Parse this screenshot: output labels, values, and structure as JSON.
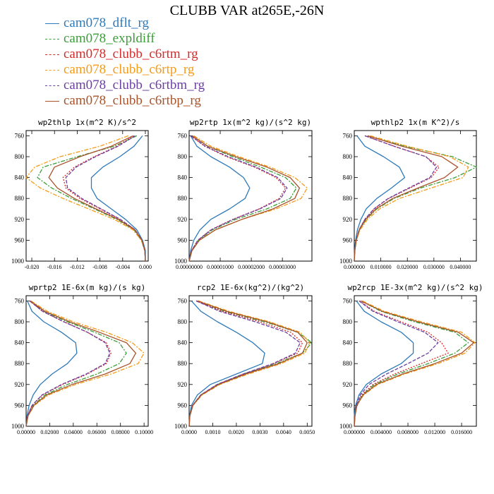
{
  "title": "CLUBB VAR at265E,-26N",
  "series": [
    {
      "name": "cam078_dflt_rg",
      "color": "#2f7ab9",
      "dash": ""
    },
    {
      "name": "cam078_expldiff",
      "color": "#3a9e38",
      "dash": "6,2,2,2"
    },
    {
      "name": "cam078_clubb_c6rtm_rg",
      "color": "#d52b2b",
      "dash": "2,2"
    },
    {
      "name": "cam078_clubb_c6rtp_rg",
      "color": "#f59b18",
      "dash": "6,2,2,2"
    },
    {
      "name": "cam078_clubb_c6rtbm_rg",
      "color": "#6b3fa0",
      "dash": "5,2"
    },
    {
      "name": "cam078_clubb_c6rtbp_rg",
      "color": "#a8532a",
      "dash": ""
    }
  ],
  "chart_data": [
    {
      "type": "line",
      "title": "wp2thlp  1x(m^2 K)/s^2",
      "xlim": [
        -0.021,
        0.0005
      ],
      "ylim": [
        1000,
        750
      ],
      "y_inverted": true,
      "xticks": [
        -0.02,
        -0.016,
        -0.012,
        -0.008,
        -0.004,
        0.0
      ],
      "xtick_labels": [
        "-0.020",
        "-0.016",
        "-0.012",
        "-0.008",
        "-0.004",
        "0.000"
      ],
      "yticks": [
        760,
        800,
        840,
        880,
        920,
        960,
        1000
      ],
      "y": [
        760,
        780,
        800,
        820,
        840,
        860,
        880,
        900,
        920,
        940,
        960,
        980,
        1000
      ],
      "series": [
        {
          "values": [
            -0.0005,
            -0.002,
            -0.0045,
            -0.0075,
            -0.0095,
            -0.0095,
            -0.0085,
            -0.006,
            -0.0035,
            -0.0015,
            -0.0005,
            0.0,
            0.0
          ]
        },
        {
          "values": [
            -0.0015,
            -0.0055,
            -0.012,
            -0.018,
            -0.019,
            -0.0165,
            -0.013,
            -0.009,
            -0.005,
            -0.002,
            -0.0007,
            -0.0001,
            0.0
          ]
        },
        {
          "values": [
            -0.002,
            -0.005,
            -0.009,
            -0.0125,
            -0.0145,
            -0.014,
            -0.0115,
            -0.008,
            -0.0045,
            -0.0018,
            -0.0006,
            -0.0001,
            0.0
          ]
        },
        {
          "values": [
            -0.003,
            -0.008,
            -0.015,
            -0.0195,
            -0.021,
            -0.0185,
            -0.0145,
            -0.01,
            -0.0055,
            -0.0022,
            -0.0007,
            -0.0001,
            0.0
          ]
        },
        {
          "values": [
            -0.0018,
            -0.0048,
            -0.0088,
            -0.0122,
            -0.014,
            -0.0137,
            -0.0112,
            -0.0078,
            -0.0044,
            -0.0018,
            -0.0006,
            -0.0001,
            0.0
          ]
        },
        {
          "values": [
            -0.0022,
            -0.006,
            -0.0115,
            -0.016,
            -0.017,
            -0.0155,
            -0.0125,
            -0.0087,
            -0.0048,
            -0.0019,
            -0.0006,
            -0.0001,
            0.0
          ]
        }
      ]
    },
    {
      "type": "line",
      "title": "wp2rtp  1x(m^2 kg)/(s^2 kg)",
      "xlim": [
        0,
        3.95e-05
      ],
      "ylim": [
        1000,
        750
      ],
      "y_inverted": true,
      "xticks": [
        0,
        1e-05,
        2e-05,
        3e-05
      ],
      "xtick_labels": [
        "0.00000000",
        "0.00001000",
        "0.00002000",
        "0.00003000"
      ],
      "yticks": [
        760,
        800,
        840,
        880,
        920,
        960,
        1000
      ],
      "y": [
        760,
        780,
        800,
        820,
        840,
        860,
        880,
        900,
        920,
        940,
        960,
        980,
        1000
      ],
      "series": [
        {
          "values": [
            5e-07,
            2.5e-06,
            7e-06,
            1.3e-05,
            1.75e-05,
            1.95e-05,
            1.8e-05,
            1.3e-05,
            7e-06,
            3.5e-06,
            1.5e-06,
            5e-07,
            0.0
          ]
        },
        {
          "values": [
            1e-06,
            6e-06,
            1.4e-05,
            2.3e-05,
            3.1e-05,
            3.45e-05,
            3.25e-05,
            2.5e-05,
            1.5e-05,
            7.5e-06,
            3e-06,
            8e-07,
            0.0
          ]
        },
        {
          "values": [
            5e-07,
            5e-06,
            1.2e-05,
            2.1e-05,
            2.8e-05,
            3.1e-05,
            2.9e-05,
            2.25e-05,
            1.4e-05,
            7e-06,
            2.8e-06,
            8e-07,
            0.0
          ]
        },
        {
          "values": [
            1.5e-06,
            7e-06,
            1.6e-05,
            2.6e-05,
            3.4e-05,
            3.8e-05,
            3.6e-05,
            2.8e-05,
            1.7e-05,
            8.5e-06,
            3.3e-06,
            9e-07,
            0.0
          ]
        },
        {
          "values": [
            5e-07,
            5.2e-06,
            1.25e-05,
            2.15e-05,
            2.85e-05,
            3.15e-05,
            2.95e-05,
            2.28e-05,
            1.42e-05,
            7.1e-06,
            2.8e-06,
            8e-07,
            0.0
          ]
        },
        {
          "values": [
            1e-06,
            6e-06,
            1.5e-05,
            2.5e-05,
            3.25e-05,
            3.55e-05,
            3.4e-05,
            2.7e-05,
            1.7e-05,
            8.5e-06,
            3.3e-06,
            9e-07,
            0.0
          ]
        }
      ]
    },
    {
      "type": "line",
      "title": "wpthlp2  1x(m K^2)/s",
      "xlim": [
        0,
        0.046
      ],
      "ylim": [
        1000,
        750
      ],
      "y_inverted": true,
      "xticks": [
        0,
        0.01,
        0.02,
        0.03,
        0.04
      ],
      "xtick_labels": [
        "0.000000",
        "0.010000",
        "0.020000",
        "0.030000",
        "0.040000"
      ],
      "yticks": [
        760,
        800,
        840,
        880,
        920,
        960,
        1000
      ],
      "y": [
        760,
        780,
        800,
        820,
        840,
        860,
        880,
        900,
        920,
        940,
        960,
        980,
        1000
      ],
      "series": [
        {
          "values": [
            0.001,
            0.004,
            0.011,
            0.017,
            0.019,
            0.014,
            0.0085,
            0.0045,
            0.0025,
            0.0012,
            0.0005,
            0.0001,
            0.0
          ]
        },
        {
          "values": [
            0.005,
            0.019,
            0.037,
            0.046,
            0.038,
            0.025,
            0.015,
            0.0085,
            0.0045,
            0.002,
            0.0008,
            0.0002,
            0.0
          ]
        },
        {
          "values": [
            0.004,
            0.015,
            0.027,
            0.032,
            0.029,
            0.021,
            0.013,
            0.0075,
            0.004,
            0.0018,
            0.0007,
            0.0002,
            0.0
          ]
        },
        {
          "values": [
            0.006,
            0.02,
            0.036,
            0.043,
            0.041,
            0.029,
            0.017,
            0.0095,
            0.005,
            0.0022,
            0.0008,
            0.0002,
            0.0
          ]
        },
        {
          "values": [
            0.004,
            0.015,
            0.027,
            0.031,
            0.0285,
            0.0205,
            0.0128,
            0.0074,
            0.004,
            0.0018,
            0.0007,
            0.0002,
            0.0
          ]
        },
        {
          "values": [
            0.005,
            0.018,
            0.033,
            0.039,
            0.034,
            0.024,
            0.0145,
            0.0082,
            0.0043,
            0.0019,
            0.0007,
            0.0002,
            0.0
          ]
        }
      ]
    },
    {
      "type": "line",
      "title": "wprtp2  1E-6x(m kg)/(s kg)",
      "xlim": [
        0,
        0.1035
      ],
      "ylim": [
        1000,
        750
      ],
      "y_inverted": true,
      "xticks": [
        0,
        0.02,
        0.04,
        0.06,
        0.08,
        0.1
      ],
      "xtick_labels": [
        "0.00000",
        "0.02000",
        "0.04000",
        "0.06000",
        "0.08000",
        "0.10000"
      ],
      "yticks": [
        760,
        800,
        840,
        880,
        920,
        960,
        1000
      ],
      "y": [
        760,
        780,
        800,
        820,
        840,
        860,
        880,
        900,
        920,
        940,
        960,
        980,
        1000
      ],
      "series": [
        {
          "values": [
            0.001,
            0.005,
            0.015,
            0.03,
            0.042,
            0.043,
            0.035,
            0.022,
            0.012,
            0.006,
            0.0025,
            0.0008,
            0.0
          ]
        },
        {
          "values": [
            0.003,
            0.015,
            0.035,
            0.058,
            0.079,
            0.085,
            0.079,
            0.06,
            0.035,
            0.016,
            0.006,
            0.0015,
            0.0
          ]
        },
        {
          "values": [
            0.003,
            0.014,
            0.032,
            0.052,
            0.068,
            0.072,
            0.068,
            0.052,
            0.031,
            0.014,
            0.005,
            0.0012,
            0.0
          ]
        },
        {
          "values": [
            0.004,
            0.018,
            0.04,
            0.068,
            0.09,
            0.1,
            0.095,
            0.072,
            0.042,
            0.019,
            0.007,
            0.0017,
            0.0
          ]
        },
        {
          "values": [
            0.003,
            0.014,
            0.032,
            0.052,
            0.067,
            0.071,
            0.067,
            0.051,
            0.03,
            0.0135,
            0.005,
            0.0012,
            0.0
          ]
        },
        {
          "values": [
            0.0035,
            0.016,
            0.037,
            0.062,
            0.085,
            0.093,
            0.088,
            0.067,
            0.039,
            0.0175,
            0.0065,
            0.0016,
            0.0
          ]
        }
      ]
    },
    {
      "type": "line",
      "title": "rcp2  1E-6x(kg^2)/(kg^2)",
      "xlim": [
        0,
        0.0052
      ],
      "ylim": [
        1000,
        750
      ],
      "y_inverted": true,
      "xticks": [
        0,
        0.001,
        0.002,
        0.003,
        0.004,
        0.005
      ],
      "xtick_labels": [
        "0.0000",
        "0.0010",
        "0.0020",
        "0.0030",
        "0.0040",
        "0.0050"
      ],
      "yticks": [
        760,
        800,
        840,
        880,
        920,
        960,
        1000
      ],
      "y": [
        760,
        780,
        800,
        820,
        840,
        860,
        880,
        900,
        920,
        940,
        960,
        980,
        1000
      ],
      "series": [
        {
          "values": [
            0.0001,
            0.0005,
            0.0012,
            0.002,
            0.0027,
            0.0032,
            0.0031,
            0.002,
            0.0009,
            0.00035,
            0.0001,
            2e-05,
            0.0
          ]
        },
        {
          "values": [
            0.0003,
            0.0015,
            0.0032,
            0.0046,
            0.0052,
            0.0048,
            0.0037,
            0.0023,
            0.0012,
            0.0005,
            0.00015,
            3e-05,
            0.0
          ]
        },
        {
          "values": [
            0.0003,
            0.0014,
            0.003,
            0.0043,
            0.0048,
            0.0046,
            0.0036,
            0.0023,
            0.0012,
            0.0005,
            0.00015,
            3e-05,
            0.0
          ]
        },
        {
          "values": [
            0.0004,
            0.0017,
            0.0034,
            0.0047,
            0.0051,
            0.0049,
            0.0039,
            0.0025,
            0.0013,
            0.00055,
            0.00016,
            3e-05,
            0.0
          ]
        },
        {
          "values": [
            0.0003,
            0.0013,
            0.0028,
            0.0041,
            0.0047,
            0.0045,
            0.00355,
            0.00228,
            0.00118,
            0.00049,
            0.00015,
            3e-05,
            0.0
          ]
        },
        {
          "values": [
            0.00035,
            0.0016,
            0.0033,
            0.0046,
            0.005,
            0.0048,
            0.0038,
            0.0024,
            0.00125,
            0.00052,
            0.00016,
            3e-05,
            0.0
          ]
        }
      ]
    },
    {
      "type": "line",
      "title": "wp2rcp  1E-3x(m^2 kg)/(s^2 kg)",
      "xlim": [
        0,
        0.0182
      ],
      "ylim": [
        1000,
        750
      ],
      "y_inverted": true,
      "xticks": [
        0,
        0.004,
        0.008,
        0.012,
        0.016
      ],
      "xtick_labels": [
        "0.000000",
        "0.004000",
        "0.008000",
        "0.012000",
        "0.016000"
      ],
      "yticks": [
        760,
        800,
        840,
        880,
        920,
        960,
        1000
      ],
      "y": [
        760,
        780,
        800,
        820,
        840,
        860,
        880,
        900,
        920,
        940,
        960,
        980,
        1000
      ],
      "series": [
        {
          "values": [
            0.0003,
            0.0015,
            0.004,
            0.007,
            0.0088,
            0.0088,
            0.007,
            0.004,
            0.0018,
            0.0007,
            0.0002,
            0.0,
            0.0
          ]
        },
        {
          "values": [
            0.001,
            0.004,
            0.009,
            0.015,
            0.017,
            0.015,
            0.011,
            0.0065,
            0.003,
            0.0012,
            0.0004,
            0.0001,
            0.0
          ]
        },
        {
          "values": [
            0.0008,
            0.003,
            0.007,
            0.011,
            0.013,
            0.014,
            0.01,
            0.006,
            0.0028,
            0.0011,
            0.0003,
            0.0001,
            0.0
          ]
        },
        {
          "values": [
            0.0012,
            0.0045,
            0.01,
            0.016,
            0.018,
            0.0165,
            0.0125,
            0.0075,
            0.0035,
            0.0014,
            0.0004,
            0.0001,
            0.0
          ]
        },
        {
          "values": [
            0.0007,
            0.0028,
            0.0065,
            0.0105,
            0.0125,
            0.011,
            0.008,
            0.0048,
            0.0022,
            0.0009,
            0.0003,
            0.0001,
            0.0
          ]
        },
        {
          "values": [
            0.001,
            0.0042,
            0.0095,
            0.0155,
            0.0178,
            0.016,
            0.012,
            0.0072,
            0.0033,
            0.0013,
            0.0004,
            0.0001,
            0.0
          ]
        }
      ]
    }
  ]
}
